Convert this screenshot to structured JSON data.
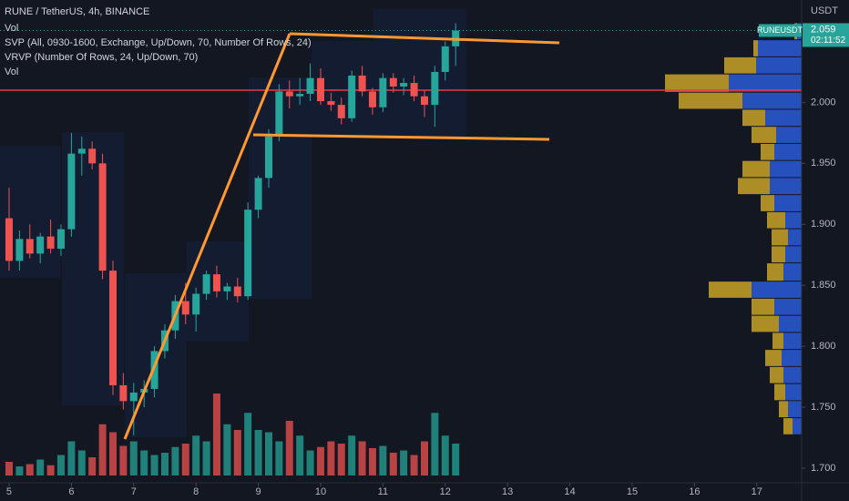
{
  "chart_data": {
    "type": "candlestick",
    "title": "RUNE / TetherUS, 4h, BINANCE",
    "indicators": [
      "Vol",
      "SVP (All, 0930-1600, Exchange, Up/Down, 70, Number Of Rows, 24)",
      "VRVP (Number Of Rows, 24, Up/Down, 70)",
      "Vol"
    ],
    "currency": "USDT",
    "symbol": "RUNEUSDT",
    "countdown": "02:11:52",
    "last_price": 2.059,
    "up_color": "#26a69a",
    "down_color": "#ef5350",
    "x": [
      5,
      5.167,
      5.333,
      5.5,
      5.667,
      5.833,
      6,
      6.167,
      6.333,
      6.5,
      6.667,
      6.833,
      7,
      7.167,
      7.333,
      7.5,
      7.667,
      7.833,
      8,
      8.167,
      8.333,
      8.5,
      8.667,
      8.833,
      9,
      9.167,
      9.333,
      9.5,
      9.667,
      9.833,
      10,
      10.167,
      10.333,
      10.5,
      10.667,
      10.833,
      11,
      11.167,
      11.333,
      11.5,
      11.667,
      11.833,
      12,
      12.167
    ],
    "open": [
      1.905,
      1.87,
      1.888,
      1.876,
      1.89,
      1.88,
      1.896,
      1.958,
      1.962,
      1.95,
      1.862,
      1.768,
      1.755,
      1.762,
      1.765,
      1.796,
      1.813,
      1.837,
      1.826,
      1.843,
      1.859,
      1.845,
      1.849,
      1.841,
      1.912,
      1.938,
      1.972,
      2.009,
      2.005,
      2.007,
      2.02,
      2.001,
      1.998,
      1.987,
      2.022,
      2.009,
      1.996,
      2.02,
      2.013,
      2.016,
      2.005,
      1.998,
      2.025,
      2.046
    ],
    "high": [
      1.93,
      1.895,
      1.9,
      1.893,
      1.904,
      1.9,
      1.975,
      1.972,
      1.968,
      1.958,
      1.87,
      1.778,
      1.77,
      1.772,
      1.8,
      1.818,
      1.842,
      1.852,
      1.848,
      1.862,
      1.866,
      1.852,
      1.856,
      1.918,
      1.94,
      1.978,
      2.015,
      2.018,
      2.02,
      2.032,
      2.028,
      2.008,
      2.004,
      2.026,
      2.03,
      2.012,
      2.024,
      2.024,
      2.02,
      2.022,
      2.01,
      2.03,
      2.05,
      2.065
    ],
    "low": [
      1.862,
      1.862,
      1.872,
      1.868,
      1.876,
      1.874,
      1.89,
      1.94,
      1.945,
      1.855,
      1.76,
      1.748,
      1.727,
      1.75,
      1.758,
      1.79,
      1.806,
      1.818,
      1.812,
      1.838,
      1.84,
      1.838,
      1.836,
      1.838,
      1.905,
      1.93,
      1.968,
      1.995,
      1.998,
      2.001,
      1.998,
      1.993,
      1.982,
      1.984,
      2.005,
      1.99,
      1.992,
      2.008,
      2.006,
      2.001,
      1.988,
      1.98,
      2.018,
      2.03
    ],
    "close": [
      1.87,
      1.888,
      1.876,
      1.89,
      1.88,
      1.896,
      1.958,
      1.962,
      1.95,
      1.862,
      1.768,
      1.755,
      1.762,
      1.765,
      1.796,
      1.813,
      1.837,
      1.826,
      1.843,
      1.859,
      1.845,
      1.849,
      1.841,
      1.912,
      1.938,
      1.972,
      2.009,
      2.005,
      2.007,
      2.02,
      2.001,
      1.998,
      1.987,
      2.022,
      2.009,
      1.996,
      2.02,
      2.013,
      2.016,
      2.005,
      1.998,
      2.025,
      2.046,
      2.059
    ],
    "volume": [
      12,
      8,
      10,
      14,
      9,
      18,
      30,
      22,
      16,
      45,
      38,
      26,
      30,
      22,
      18,
      20,
      25,
      28,
      35,
      30,
      72,
      45,
      40,
      55,
      40,
      38,
      30,
      48,
      35,
      22,
      25,
      30,
      28,
      35,
      30,
      24,
      26,
      20,
      22,
      18,
      30,
      55,
      35,
      28
    ],
    "poc": 2.01,
    "profile_bins": [
      1.727,
      1.741,
      1.755,
      1.769,
      1.783,
      1.797,
      1.811,
      1.825,
      1.839,
      1.853,
      1.868,
      1.882,
      1.896,
      1.91,
      1.924,
      1.938,
      1.952,
      1.966,
      1.98,
      1.994,
      2.008,
      2.023,
      2.037,
      2.051,
      2.065
    ],
    "profile_up": [
      10,
      15,
      18,
      20,
      22,
      20,
      25,
      30,
      55,
      20,
      18,
      15,
      18,
      30,
      35,
      35,
      30,
      28,
      40,
      65,
      80,
      50,
      48,
      5
    ],
    "profile_down": [
      10,
      10,
      12,
      15,
      18,
      12,
      30,
      25,
      47,
      18,
      15,
      18,
      20,
      15,
      35,
      30,
      15,
      27,
      25,
      70,
      70,
      35,
      5,
      3
    ],
    "profile_up_color": "#2a5bd7",
    "profile_down_color": "#c9a227",
    "poc_color": "#f23645",
    "xlim": [
      4.854,
      17.72
    ],
    "xticks": [
      5,
      6,
      7,
      8,
      9,
      10,
      11,
      12,
      13,
      14,
      15,
      16,
      17
    ],
    "ylim": [
      1.688,
      2.084
    ],
    "yticks": [
      {
        "value": 1.7,
        "label": "1.700"
      },
      {
        "value": 1.75,
        "label": "1.750"
      },
      {
        "value": 1.8,
        "label": "1.800"
      },
      {
        "value": 1.85,
        "label": "1.850"
      },
      {
        "value": 1.9,
        "label": "1.900"
      },
      {
        "value": 1.95,
        "label": "1.950"
      },
      {
        "value": 2.0,
        "label": "2.000"
      }
    ],
    "grid": false
  }
}
